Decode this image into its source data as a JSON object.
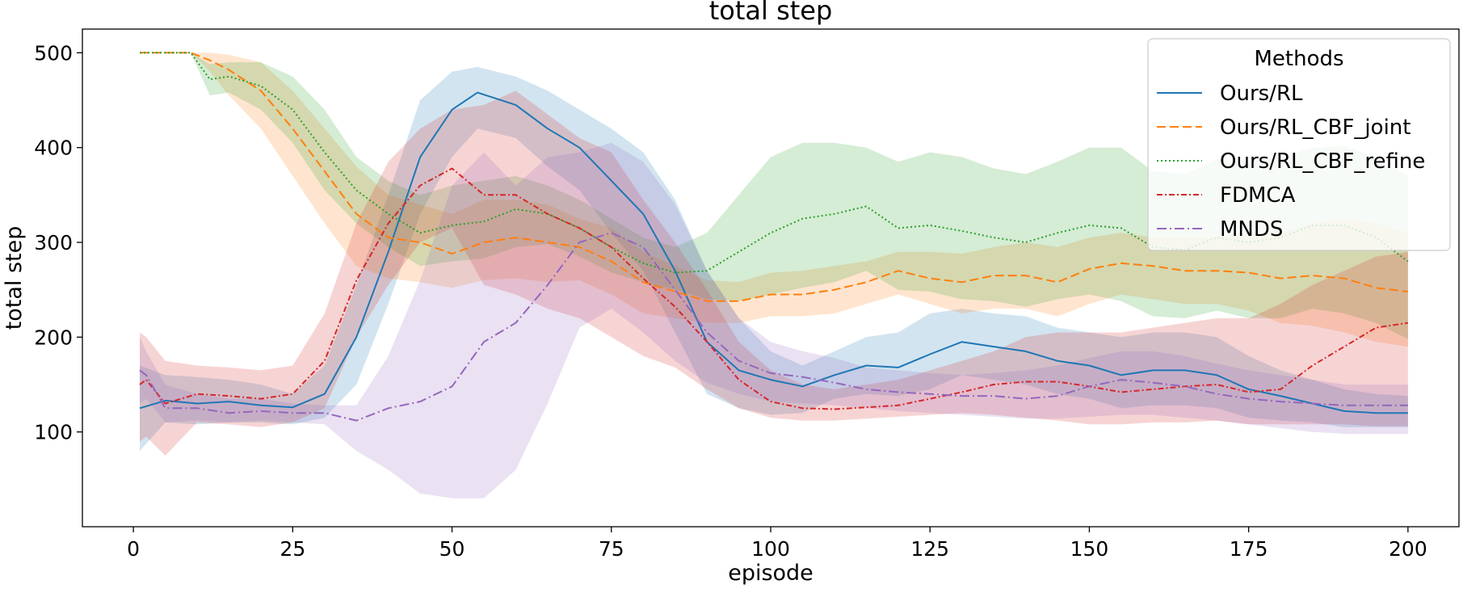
{
  "chart_data": {
    "type": "line",
    "title": "total step",
    "xlabel": "episode",
    "ylabel": "total step",
    "xlim": [
      -8,
      208
    ],
    "ylim": [
      0,
      525
    ],
    "xticks": [
      0,
      25,
      50,
      75,
      100,
      125,
      150,
      175,
      200
    ],
    "yticks": [
      100,
      200,
      300,
      400,
      500
    ],
    "grid": false,
    "legend": {
      "title": "Methods",
      "placement": "top-right"
    },
    "series": [
      {
        "name": "Ours/RL",
        "color": "#1f77b4",
        "dash": "solid",
        "x": [
          1,
          5,
          10,
          15,
          20,
          25,
          30,
          35,
          40,
          45,
          50,
          54,
          60,
          65,
          70,
          75,
          80,
          85,
          90,
          95,
          100,
          105,
          110,
          115,
          120,
          125,
          130,
          135,
          140,
          145,
          150,
          155,
          160,
          165,
          170,
          175,
          180,
          185,
          190,
          195,
          200
        ],
        "y": [
          125,
          133,
          130,
          132,
          128,
          126,
          140,
          200,
          290,
          390,
          440,
          458,
          445,
          420,
          400,
          365,
          330,
          270,
          195,
          165,
          155,
          148,
          160,
          170,
          168,
          182,
          195,
          190,
          185,
          175,
          170,
          160,
          165,
          165,
          160,
          145,
          138,
          130,
          122,
          120,
          120
        ],
        "upper": [
          170,
          160,
          158,
          155,
          150,
          140,
          170,
          255,
          350,
          450,
          480,
          485,
          475,
          460,
          440,
          420,
          395,
          345,
          270,
          220,
          185,
          170,
          185,
          200,
          205,
          225,
          230,
          225,
          222,
          210,
          205,
          200,
          205,
          205,
          200,
          180,
          165,
          155,
          145,
          140,
          138
        ],
        "lower": [
          80,
          110,
          108,
          110,
          110,
          108,
          115,
          150,
          235,
          330,
          390,
          420,
          410,
          380,
          355,
          310,
          270,
          205,
          140,
          125,
          118,
          120,
          135,
          140,
          138,
          145,
          160,
          155,
          150,
          140,
          135,
          125,
          128,
          128,
          125,
          115,
          112,
          110,
          105,
          105,
          105
        ]
      },
      {
        "name": "Ours/RL_CBF_joint",
        "color": "#ff7f0e",
        "dash": "dashed",
        "x": [
          1,
          5,
          9,
          12,
          15,
          20,
          25,
          30,
          35,
          40,
          45,
          50,
          55,
          60,
          65,
          70,
          75,
          80,
          85,
          90,
          95,
          100,
          105,
          110,
          115,
          120,
          125,
          130,
          135,
          140,
          145,
          150,
          155,
          160,
          165,
          170,
          175,
          180,
          185,
          190,
          195,
          200
        ],
        "y": [
          500,
          500,
          500,
          492,
          482,
          460,
          420,
          375,
          330,
          305,
          300,
          288,
          300,
          305,
          300,
          295,
          280,
          258,
          248,
          238,
          238,
          245,
          245,
          250,
          258,
          270,
          262,
          258,
          265,
          265,
          258,
          272,
          278,
          275,
          270,
          270,
          268,
          262,
          265,
          262,
          252,
          248
        ],
        "upper": [
          500,
          500,
          500,
          500,
          498,
          490,
          460,
          420,
          380,
          350,
          340,
          330,
          345,
          345,
          340,
          325,
          315,
          290,
          275,
          260,
          258,
          268,
          270,
          275,
          280,
          290,
          290,
          288,
          295,
          300,
          295,
          305,
          310,
          305,
          305,
          305,
          310,
          310,
          320,
          325,
          320,
          310
        ],
        "lower": [
          500,
          500,
          500,
          480,
          455,
          420,
          370,
          320,
          275,
          262,
          258,
          252,
          260,
          262,
          258,
          260,
          245,
          225,
          220,
          215,
          215,
          222,
          222,
          225,
          235,
          245,
          235,
          225,
          230,
          230,
          222,
          235,
          245,
          240,
          235,
          235,
          228,
          215,
          212,
          205,
          195,
          190
        ]
      },
      {
        "name": "Ours/RL_CBF_refine",
        "color": "#2ca02c",
        "dash": "dotted",
        "x": [
          1,
          5,
          9,
          12,
          15,
          20,
          25,
          30,
          35,
          40,
          45,
          50,
          55,
          60,
          65,
          70,
          75,
          80,
          85,
          90,
          95,
          100,
          105,
          110,
          115,
          120,
          125,
          130,
          135,
          140,
          145,
          150,
          155,
          160,
          165,
          170,
          175,
          180,
          185,
          190,
          195,
          200
        ],
        "y": [
          500,
          500,
          500,
          472,
          475,
          465,
          440,
          395,
          355,
          330,
          310,
          318,
          322,
          335,
          330,
          315,
          295,
          278,
          268,
          270,
          290,
          310,
          325,
          330,
          338,
          315,
          318,
          312,
          305,
          300,
          310,
          318,
          315,
          295,
          292,
          305,
          300,
          305,
          318,
          318,
          305,
          280
        ],
        "upper": [
          500,
          500,
          500,
          488,
          490,
          490,
          475,
          440,
          390,
          365,
          350,
          360,
          365,
          370,
          360,
          345,
          325,
          305,
          295,
          310,
          350,
          390,
          405,
          405,
          400,
          385,
          395,
          390,
          378,
          372,
          385,
          400,
          400,
          375,
          372,
          388,
          385,
          390,
          400,
          402,
          390,
          370
        ],
        "lower": [
          500,
          500,
          500,
          455,
          458,
          440,
          405,
          355,
          320,
          295,
          275,
          280,
          283,
          295,
          298,
          285,
          268,
          258,
          250,
          240,
          238,
          245,
          252,
          258,
          270,
          250,
          248,
          240,
          238,
          232,
          240,
          245,
          238,
          222,
          220,
          228,
          220,
          220,
          230,
          225,
          215,
          198
        ]
      },
      {
        "name": "FDMCA",
        "color": "#d62728",
        "dash": "dashdot-dense",
        "x": [
          1,
          2,
          5,
          10,
          15,
          20,
          25,
          30,
          35,
          40,
          45,
          50,
          55,
          60,
          65,
          70,
          75,
          80,
          85,
          90,
          95,
          100,
          105,
          110,
          115,
          120,
          125,
          130,
          135,
          140,
          145,
          150,
          155,
          160,
          165,
          170,
          175,
          180,
          185,
          190,
          195,
          200
        ],
        "y": [
          150,
          155,
          130,
          140,
          138,
          135,
          140,
          175,
          260,
          320,
          360,
          378,
          350,
          350,
          330,
          315,
          295,
          262,
          232,
          195,
          155,
          132,
          125,
          124,
          126,
          128,
          135,
          142,
          150,
          153,
          153,
          148,
          142,
          145,
          148,
          150,
          142,
          145,
          170,
          190,
          210,
          215
        ],
        "upper": [
          205,
          200,
          175,
          170,
          168,
          165,
          170,
          225,
          320,
          385,
          420,
          440,
          445,
          460,
          435,
          410,
          395,
          345,
          300,
          250,
          195,
          165,
          150,
          145,
          150,
          155,
          165,
          175,
          185,
          200,
          205,
          205,
          205,
          210,
          215,
          220,
          220,
          235,
          255,
          270,
          285,
          290
        ],
        "lower": [
          90,
          95,
          75,
          110,
          108,
          105,
          110,
          125,
          200,
          255,
          300,
          315,
          255,
          245,
          230,
          220,
          200,
          180,
          168,
          145,
          125,
          115,
          112,
          112,
          114,
          116,
          118,
          120,
          118,
          115,
          112,
          108,
          108,
          110,
          110,
          112,
          108,
          108,
          108,
          108,
          106,
          106
        ]
      },
      {
        "name": "MNDS",
        "color": "#9467bd",
        "dash": "dashdot",
        "x": [
          1,
          2,
          5,
          10,
          15,
          20,
          25,
          30,
          35,
          40,
          45,
          50,
          55,
          60,
          65,
          70,
          75,
          80,
          85,
          90,
          95,
          100,
          105,
          110,
          115,
          120,
          125,
          130,
          135,
          140,
          145,
          150,
          155,
          160,
          165,
          170,
          175,
          180,
          185,
          190,
          195,
          200
        ],
        "y": [
          165,
          160,
          125,
          125,
          120,
          122,
          120,
          120,
          112,
          125,
          132,
          148,
          195,
          215,
          255,
          300,
          310,
          295,
          250,
          205,
          175,
          162,
          158,
          152,
          145,
          142,
          140,
          138,
          138,
          135,
          138,
          148,
          155,
          152,
          148,
          140,
          135,
          132,
          130,
          128,
          128,
          128
        ],
        "upper": [
          200,
          185,
          150,
          140,
          135,
          135,
          130,
          128,
          128,
          180,
          260,
          360,
          395,
          360,
          390,
          395,
          405,
          385,
          340,
          270,
          220,
          195,
          185,
          178,
          168,
          165,
          162,
          160,
          162,
          165,
          170,
          178,
          185,
          185,
          180,
          172,
          165,
          160,
          155,
          150,
          150,
          150
        ],
        "lower": [
          130,
          135,
          110,
          112,
          110,
          112,
          110,
          108,
          80,
          60,
          35,
          30,
          30,
          60,
          130,
          210,
          230,
          205,
          175,
          152,
          140,
          132,
          130,
          128,
          125,
          122,
          120,
          118,
          116,
          114,
          114,
          116,
          118,
          118,
          115,
          112,
          108,
          104,
          100,
          98,
          98,
          98
        ]
      }
    ]
  }
}
